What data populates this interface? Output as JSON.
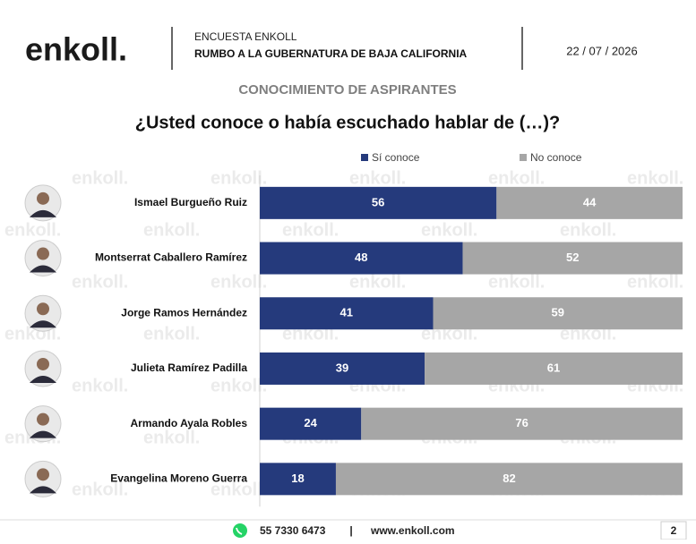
{
  "header": {
    "logo": "enkoll.",
    "survey": "ENCUESTA ENKOLL",
    "subtitle": "RUMBO A LA GUBERNATURA DE BAJA CALIFORNIA",
    "date": "22 / 07 / 2026"
  },
  "chart_data": {
    "type": "stacked-barh",
    "title": "CONOCIMIENTO DE ASPIRANTES",
    "subtitle": "¿Usted conoce o había escuchado hablar de (…)?",
    "categories": [
      "Ismael Burgueño Ruiz",
      "Montserrat Caballero Ramírez",
      "Jorge Ramos Hernández",
      "Julieta Ramírez Padilla",
      "Armando Ayala Robles",
      "Evangelina Moreno Guerra"
    ],
    "series": [
      {
        "name": "Sí conoce",
        "color": "#253a7c",
        "values": [
          56,
          48,
          41,
          39,
          24,
          18
        ]
      },
      {
        "name": "No conoce",
        "color": "#a6a6a6",
        "values": [
          44,
          52,
          59,
          61,
          76,
          82
        ]
      }
    ],
    "xlim": [
      0,
      100
    ],
    "legend": "top"
  },
  "footer": {
    "phone": "55 7330 6473",
    "separator": "|",
    "website": "www.enkoll.com",
    "page": 2
  }
}
